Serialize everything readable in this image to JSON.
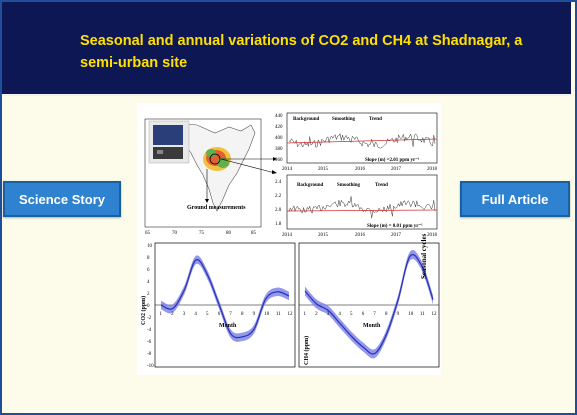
{
  "header": {
    "title": "Seasonal and annual variations of CO2 and CH4 at Shadnagar, a semi-urban site"
  },
  "buttons": {
    "science_story": "Science Story",
    "full_article": "Full Article"
  },
  "figure": {
    "map": {
      "label": "Ground measurements",
      "x_ticks": [
        "65",
        "70",
        "75",
        "80",
        "85"
      ]
    },
    "co2_panel": {
      "ylabel": "CO2 (ppm)",
      "legend": [
        "Background",
        "Smoothing",
        "Trend"
      ],
      "slope": "Slope (m) =2.01 ppm yr⁻¹",
      "y_ticks": [
        "440",
        "420",
        "400",
        "380",
        "360"
      ],
      "x_ticks": [
        "2014",
        "2015",
        "2016",
        "2017",
        "2018"
      ]
    },
    "ch4_panel": {
      "ylabel": "CH4 (ppm)",
      "legend": [
        "Background",
        "Smoothing",
        "Trend"
      ],
      "slope": "Slope (m) = 0.01 ppm yr⁻¹",
      "y_ticks": [
        "2.4",
        "2.2",
        "2.0",
        "1.8"
      ],
      "x_ticks": [
        "2014",
        "2015",
        "2016",
        "2017",
        "2018"
      ]
    },
    "seasonal_co2": {
      "ylabel": "CO2 (ppm)",
      "xlabel": "Month",
      "x_ticks": [
        "1",
        "2",
        "3",
        "4",
        "5",
        "6",
        "7",
        "8",
        "9",
        "10",
        "11",
        "12"
      ],
      "y_ticks": [
        "10",
        "8",
        "6",
        "4",
        "2",
        "0",
        "-2",
        "-4",
        "-6",
        "-8",
        "-10"
      ]
    },
    "seasonal_ch4": {
      "ylabel": "CH4 (ppm)",
      "xlabel": "Month",
      "side_label": "Seasonal cycles",
      "x_ticks": [
        "1",
        "2",
        "3",
        "4",
        "5",
        "6",
        "7",
        "8",
        "9",
        "10",
        "11",
        "12"
      ]
    }
  },
  "chart_data": [
    {
      "type": "line",
      "ylabel": "CO2 (ppm)",
      "xlabel": "Month",
      "x": [
        1,
        2,
        3,
        4,
        5,
        6,
        7,
        8,
        9,
        10,
        11,
        12
      ],
      "series": [
        {
          "values": [
            0,
            -0.6,
            2.5,
            7.5,
            5.0,
            0.0,
            -4.8,
            -5.3,
            -4.0,
            1.0,
            2.2,
            1.5
          ]
        }
      ],
      "ylim": [
        -10,
        10
      ]
    },
    {
      "type": "line",
      "ylabel": "CH4 (ppm)",
      "xlabel": "Month",
      "x": [
        1,
        2,
        3,
        4,
        5,
        6,
        7,
        8,
        9,
        10,
        11,
        12
      ],
      "series": [
        {
          "values": [
            0.04,
            0.01,
            -0.005,
            -0.035,
            -0.065,
            -0.09,
            -0.105,
            -0.06,
            0.02,
            0.12,
            0.1,
            0.02
          ]
        }
      ],
      "ylim": [
        -0.12,
        0.14
      ]
    }
  ]
}
